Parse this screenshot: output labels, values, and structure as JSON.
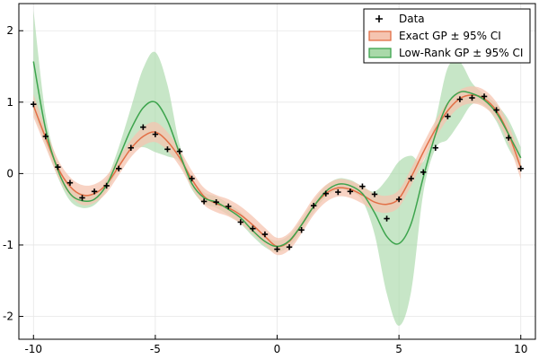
{
  "chart_data": {
    "type": "line",
    "title": "",
    "xlabel": "",
    "ylabel": "",
    "xlim": [
      -10.6,
      10.6
    ],
    "ylim": [
      -2.32,
      2.38
    ],
    "grid": true,
    "legend_position": "top-right",
    "x_ticks": [
      -10,
      -5,
      0,
      5,
      10
    ],
    "y_ticks": [
      -2,
      -1,
      0,
      1,
      2
    ],
    "x_tick_labels": [
      "-10",
      "-5",
      "0",
      "5",
      "10"
    ],
    "y_tick_labels": [
      "-2",
      "-1",
      "0",
      "1",
      "2"
    ],
    "legend": [
      {
        "label": "Data",
        "kind": "marker",
        "color": "#000000"
      },
      {
        "label": "Exact GP ± 95% CI",
        "kind": "band",
        "color": "#e26f46",
        "fill": "#f5c4b0"
      },
      {
        "label": "Low-Rank GP ± 95% CI",
        "kind": "band",
        "color": "#3da44d",
        "fill": "#a9d9a9"
      }
    ],
    "data_points": {
      "x": [
        -10,
        -9.5,
        -9,
        -8.5,
        -8,
        -7.5,
        -7,
        -6.5,
        -6,
        -5.5,
        -5,
        -4.5,
        -4,
        -3.5,
        -3,
        -2.5,
        -2,
        -1.5,
        -1,
        -0.5,
        0,
        0.5,
        1,
        1.5,
        2,
        2.5,
        3,
        3.5,
        4,
        4.5,
        5,
        5.5,
        6,
        6.5,
        7,
        7.5,
        8,
        8.5,
        9,
        9.5,
        10
      ],
      "y": [
        0.97,
        0.52,
        0.09,
        -0.13,
        -0.34,
        -0.25,
        -0.17,
        0.07,
        0.36,
        0.65,
        0.55,
        0.34,
        0.31,
        -0.07,
        -0.39,
        -0.4,
        -0.46,
        -0.68,
        -0.77,
        -0.85,
        -1.06,
        -1.03,
        -0.79,
        -0.45,
        -0.28,
        -0.26,
        -0.25,
        -0.18,
        -0.29,
        -0.63,
        -0.36,
        -0.07,
        0.02,
        0.36,
        0.8,
        1.04,
        1.06,
        1.08,
        0.89,
        0.5,
        0.07
      ]
    },
    "series": [
      {
        "name": "Exact GP ± 95% CI",
        "color": "#e26f46",
        "fill": "#f5c4b0",
        "x": [
          -10,
          -9.5,
          -9,
          -8.5,
          -8,
          -7.5,
          -7,
          -6.5,
          -6,
          -5.5,
          -5,
          -4.5,
          -4,
          -3.5,
          -3,
          -2.5,
          -2,
          -1.5,
          -1,
          -0.5,
          0,
          0.5,
          1,
          1.5,
          2,
          2.5,
          3,
          3.5,
          4,
          4.5,
          5,
          5.5,
          6,
          6.5,
          7,
          7.5,
          8,
          8.5,
          9,
          9.5,
          10
        ],
        "mean": [
          0.95,
          0.5,
          0.08,
          -0.18,
          -0.3,
          -0.28,
          -0.15,
          0.1,
          0.35,
          0.52,
          0.58,
          0.45,
          0.22,
          -0.08,
          -0.32,
          -0.42,
          -0.48,
          -0.58,
          -0.72,
          -0.88,
          -1.02,
          -0.95,
          -0.72,
          -0.46,
          -0.28,
          -0.2,
          -0.22,
          -0.3,
          -0.4,
          -0.43,
          -0.35,
          -0.05,
          0.3,
          0.62,
          0.88,
          1.05,
          1.1,
          1.05,
          0.88,
          0.55,
          0.08
        ],
        "ci_half_width": [
          0.16,
          0.13,
          0.12,
          0.13,
          0.14,
          0.13,
          0.12,
          0.12,
          0.12,
          0.13,
          0.14,
          0.13,
          0.12,
          0.12,
          0.12,
          0.12,
          0.12,
          0.12,
          0.12,
          0.12,
          0.12,
          0.12,
          0.12,
          0.12,
          0.12,
          0.12,
          0.12,
          0.12,
          0.12,
          0.12,
          0.12,
          0.12,
          0.12,
          0.12,
          0.12,
          0.12,
          0.12,
          0.12,
          0.12,
          0.13,
          0.16
        ]
      },
      {
        "name": "Low-Rank GP ± 95% CI",
        "color": "#3da44d",
        "fill": "#a9d9a9",
        "x": [
          -10,
          -9.5,
          -9,
          -8.5,
          -8,
          -7.5,
          -7,
          -6.5,
          -6,
          -5.5,
          -5,
          -4.5,
          -4,
          -3.5,
          -3,
          -2.5,
          -2,
          -1.5,
          -1,
          -0.5,
          0,
          0.5,
          1,
          1.5,
          2,
          2.5,
          3,
          3.5,
          4,
          4.5,
          5,
          5.5,
          6,
          6.5,
          7,
          7.5,
          8,
          8.5,
          9,
          9.5,
          10
        ],
        "mean": [
          1.57,
          0.62,
          0.05,
          -0.28,
          -0.38,
          -0.36,
          -0.16,
          0.22,
          0.62,
          0.92,
          1.0,
          0.74,
          0.28,
          -0.14,
          -0.34,
          -0.4,
          -0.5,
          -0.62,
          -0.8,
          -0.95,
          -1.02,
          -0.94,
          -0.72,
          -0.46,
          -0.25,
          -0.15,
          -0.17,
          -0.28,
          -0.55,
          -0.88,
          -0.98,
          -0.7,
          -0.05,
          0.55,
          0.98,
          1.14,
          1.12,
          1.03,
          0.85,
          0.55,
          0.22
        ],
        "ci_half_width": [
          0.72,
          0.2,
          0.1,
          0.1,
          0.1,
          0.08,
          0.08,
          0.15,
          0.3,
          0.55,
          0.7,
          0.5,
          0.12,
          0.08,
          0.08,
          0.08,
          0.08,
          0.08,
          0.08,
          0.08,
          0.08,
          0.08,
          0.08,
          0.08,
          0.08,
          0.08,
          0.08,
          0.1,
          0.3,
          0.8,
          1.15,
          0.95,
          0.22,
          0.2,
          0.5,
          0.42,
          0.15,
          0.08,
          0.12,
          0.2,
          0.15
        ]
      }
    ]
  }
}
